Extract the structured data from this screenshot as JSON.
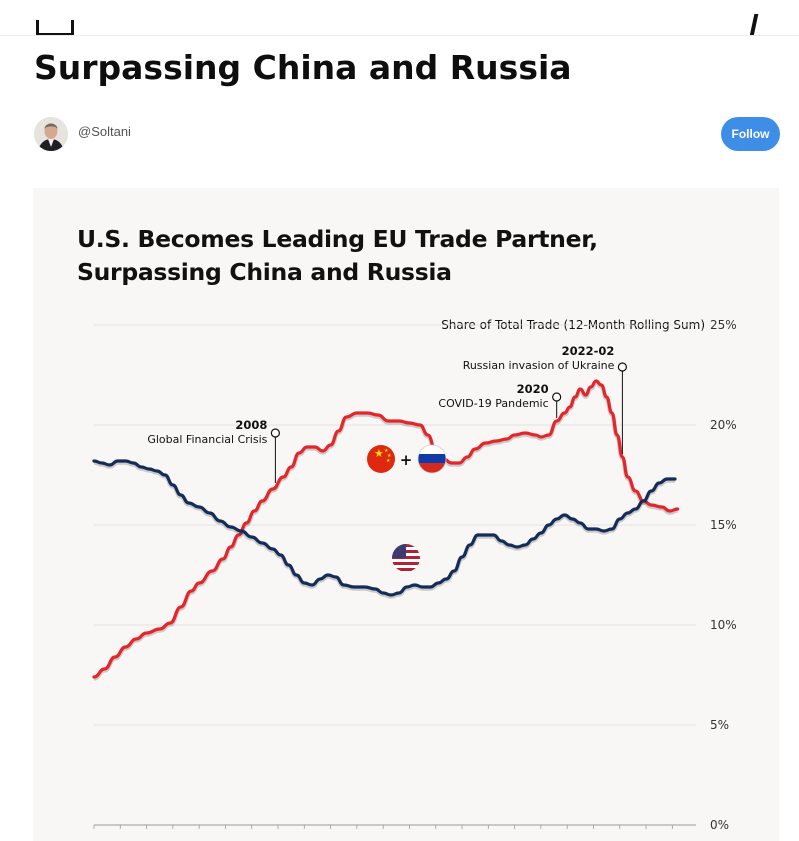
{
  "article": {
    "title": "Surpassing China and Russia"
  },
  "author": {
    "handle": "@Soltani",
    "avatar_icon": "author-avatar-photo"
  },
  "follow_label": "Follow",
  "colors": {
    "follow_button": "#3e8ee8",
    "china_russia_line": "#e4262b",
    "us_line": "#132c59",
    "card_background": "#f8f7f5"
  },
  "chart_data": {
    "type": "line",
    "title_lines": [
      "U.S. Becomes Leading EU Trade Partner,",
      "Surpassing China and Russia"
    ],
    "axis_title": "Share of Total Trade (12-Month Rolling Sum)",
    "y_ticks": [
      "25%",
      "20%",
      "15%",
      "10%",
      "5%",
      "0%"
    ],
    "y_tick_values": [
      25,
      20,
      15,
      10,
      5,
      0
    ],
    "ylim": [
      0,
      25
    ],
    "y_axis_position": "right",
    "x_axis": "monthly, 2002 to end of 2024 (no printed labels)",
    "x_range": [
      2002.0,
      2024.9
    ],
    "grid": true,
    "series": [
      {
        "label_icon": "china-flag + russia-flag",
        "color": "#e4262b",
        "points": [
          [
            2002.0,
            7.4
          ],
          [
            2002.4,
            7.8
          ],
          [
            2002.8,
            8.4
          ],
          [
            2003.2,
            8.9
          ],
          [
            2003.6,
            9.3
          ],
          [
            2004.0,
            9.6
          ],
          [
            2004.5,
            9.8
          ],
          [
            2004.9,
            10.1
          ],
          [
            2005.3,
            10.9
          ],
          [
            2005.7,
            11.7
          ],
          [
            2006.0,
            12.1
          ],
          [
            2006.5,
            12.7
          ],
          [
            2006.9,
            13.3
          ],
          [
            2007.2,
            13.9
          ],
          [
            2007.5,
            14.5
          ],
          [
            2007.8,
            15.1
          ],
          [
            2008.1,
            15.7
          ],
          [
            2008.4,
            16.2
          ],
          [
            2008.8,
            16.8
          ],
          [
            2009.2,
            17.4
          ],
          [
            2009.5,
            17.9
          ],
          [
            2009.8,
            18.6
          ],
          [
            2010.1,
            18.9
          ],
          [
            2010.4,
            18.9
          ],
          [
            2010.7,
            18.7
          ],
          [
            2011.0,
            19.0
          ],
          [
            2011.3,
            19.7
          ],
          [
            2011.6,
            20.4
          ],
          [
            2012.0,
            20.6
          ],
          [
            2012.4,
            20.6
          ],
          [
            2012.8,
            20.5
          ],
          [
            2013.2,
            20.2
          ],
          [
            2013.6,
            20.2
          ],
          [
            2014.0,
            20.1
          ],
          [
            2014.4,
            20.0
          ],
          [
            2014.7,
            19.5
          ],
          [
            2015.0,
            18.7
          ],
          [
            2015.3,
            18.3
          ],
          [
            2015.6,
            18.1
          ],
          [
            2015.9,
            18.1
          ],
          [
            2016.2,
            18.4
          ],
          [
            2016.5,
            18.8
          ],
          [
            2016.9,
            19.1
          ],
          [
            2017.3,
            19.2
          ],
          [
            2017.7,
            19.3
          ],
          [
            2018.0,
            19.5
          ],
          [
            2018.4,
            19.6
          ],
          [
            2018.8,
            19.5
          ],
          [
            2019.0,
            19.4
          ],
          [
            2019.3,
            19.5
          ],
          [
            2019.6,
            20.2
          ],
          [
            2019.9,
            20.6
          ],
          [
            2020.1,
            20.9
          ],
          [
            2020.3,
            21.4
          ],
          [
            2020.5,
            21.8
          ],
          [
            2020.7,
            21.5
          ],
          [
            2020.9,
            21.9
          ],
          [
            2021.1,
            22.2
          ],
          [
            2021.3,
            22.0
          ],
          [
            2021.5,
            21.4
          ],
          [
            2021.7,
            20.6
          ],
          [
            2021.9,
            19.5
          ],
          [
            2022.1,
            18.4
          ],
          [
            2022.3,
            17.4
          ],
          [
            2022.6,
            16.7
          ],
          [
            2022.9,
            16.2
          ],
          [
            2023.2,
            16.0
          ],
          [
            2023.6,
            15.9
          ],
          [
            2023.9,
            15.7
          ],
          [
            2024.2,
            15.8
          ]
        ]
      },
      {
        "label_icon": "us-flag",
        "color": "#132c59",
        "points": [
          [
            2002.0,
            18.2
          ],
          [
            2002.3,
            18.1
          ],
          [
            2002.6,
            18.0
          ],
          [
            2002.9,
            18.2
          ],
          [
            2003.2,
            18.2
          ],
          [
            2003.5,
            18.1
          ],
          [
            2003.8,
            17.9
          ],
          [
            2004.1,
            17.8
          ],
          [
            2004.4,
            17.7
          ],
          [
            2004.7,
            17.5
          ],
          [
            2005.0,
            17.0
          ],
          [
            2005.3,
            16.5
          ],
          [
            2005.6,
            16.1
          ],
          [
            2006.0,
            15.9
          ],
          [
            2006.4,
            15.6
          ],
          [
            2006.8,
            15.2
          ],
          [
            2007.2,
            14.9
          ],
          [
            2007.6,
            14.7
          ],
          [
            2008.0,
            14.4
          ],
          [
            2008.4,
            14.1
          ],
          [
            2008.8,
            13.8
          ],
          [
            2009.1,
            13.5
          ],
          [
            2009.4,
            13.0
          ],
          [
            2009.7,
            12.5
          ],
          [
            2010.0,
            12.1
          ],
          [
            2010.3,
            12.0
          ],
          [
            2010.6,
            12.3
          ],
          [
            2010.9,
            12.5
          ],
          [
            2011.2,
            12.4
          ],
          [
            2011.5,
            12.0
          ],
          [
            2011.9,
            11.9
          ],
          [
            2012.3,
            11.9
          ],
          [
            2012.7,
            11.8
          ],
          [
            2013.0,
            11.6
          ],
          [
            2013.3,
            11.5
          ],
          [
            2013.6,
            11.6
          ],
          [
            2013.9,
            11.9
          ],
          [
            2014.2,
            12.0
          ],
          [
            2014.5,
            11.9
          ],
          [
            2014.8,
            11.9
          ],
          [
            2015.1,
            12.1
          ],
          [
            2015.4,
            12.3
          ],
          [
            2015.7,
            12.7
          ],
          [
            2016.0,
            13.4
          ],
          [
            2016.3,
            14.0
          ],
          [
            2016.6,
            14.5
          ],
          [
            2016.9,
            14.5
          ],
          [
            2017.2,
            14.5
          ],
          [
            2017.5,
            14.2
          ],
          [
            2017.8,
            14.0
          ],
          [
            2018.1,
            13.9
          ],
          [
            2018.4,
            14.0
          ],
          [
            2018.7,
            14.3
          ],
          [
            2019.0,
            14.6
          ],
          [
            2019.3,
            15.0
          ],
          [
            2019.6,
            15.3
          ],
          [
            2019.9,
            15.5
          ],
          [
            2020.2,
            15.3
          ],
          [
            2020.5,
            15.1
          ],
          [
            2020.8,
            14.8
          ],
          [
            2021.1,
            14.8
          ],
          [
            2021.4,
            14.7
          ],
          [
            2021.7,
            14.8
          ],
          [
            2022.0,
            15.3
          ],
          [
            2022.3,
            15.6
          ],
          [
            2022.6,
            15.8
          ],
          [
            2022.9,
            16.2
          ],
          [
            2023.2,
            16.7
          ],
          [
            2023.5,
            17.1
          ],
          [
            2023.8,
            17.3
          ],
          [
            2024.1,
            17.3
          ]
        ]
      }
    ],
    "annotations": [
      {
        "year_label": "2008",
        "text": "Global Financial Crisis",
        "x": 2008.9
      },
      {
        "year_label": "2020",
        "text": "COVID-19 Pandemic",
        "x": 2019.6
      },
      {
        "year_label": "2022-02",
        "text": "Russian invasion of Ukraine",
        "x": 2022.1
      }
    ]
  }
}
